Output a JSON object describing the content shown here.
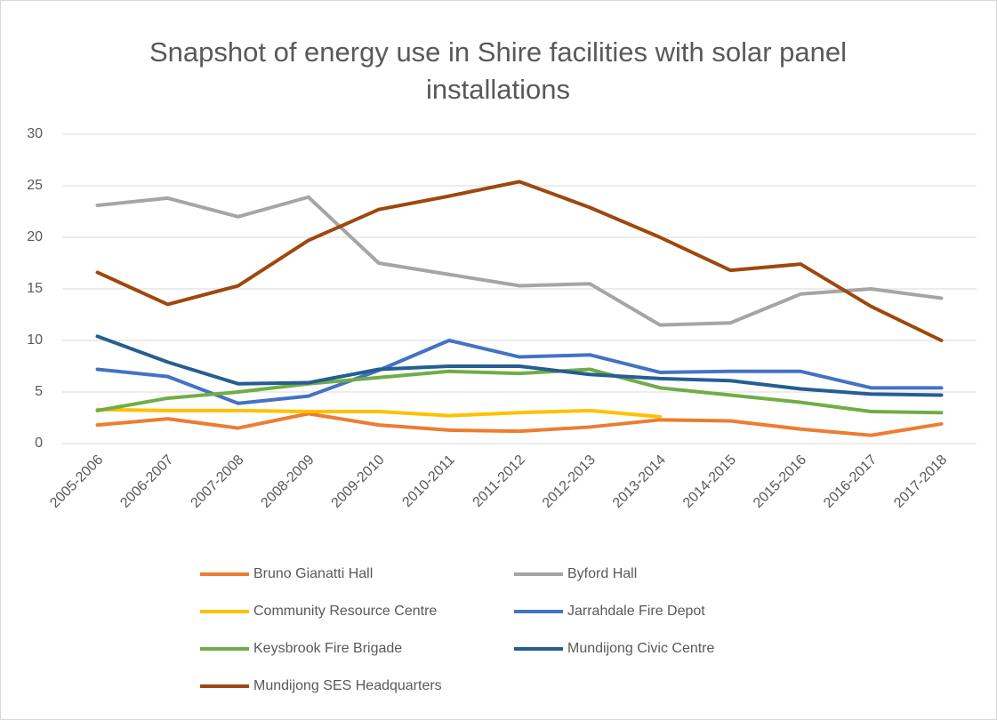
{
  "chart_data": {
    "type": "line",
    "title": "Snapshot of energy use in Shire facilities with solar panel installations",
    "categories": [
      "2005-2006",
      "2006-2007",
      "2007-2008",
      "2008-2009",
      "2009-2010",
      "2010-2011",
      "2011-2012",
      "2012-2013",
      "2013-2014",
      "2014-2015",
      "2015-2016",
      "2016-2017",
      "2017-2018"
    ],
    "series": [
      {
        "name": "Bruno Gianatti Hall",
        "color": "#ed7d31",
        "values": [
          1.8,
          2.4,
          1.5,
          2.9,
          1.8,
          1.3,
          1.2,
          1.6,
          2.3,
          2.2,
          1.4,
          0.8,
          1.9
        ]
      },
      {
        "name": "Byford Hall",
        "color": "#a5a5a5",
        "values": [
          23.1,
          23.8,
          22.0,
          23.9,
          17.5,
          16.4,
          15.3,
          15.5,
          11.5,
          11.7,
          14.5,
          15.0,
          14.1
        ]
      },
      {
        "name": "Community Resource Centre",
        "color": "#ffc000",
        "values": [
          3.3,
          3.2,
          3.2,
          3.1,
          3.1,
          2.7,
          3.0,
          3.2,
          2.6,
          null,
          null,
          null,
          null
        ]
      },
      {
        "name": "Jarrahdale Fire Depot",
        "color": "#4472c4",
        "values": [
          7.2,
          6.5,
          3.9,
          4.6,
          7.1,
          10.0,
          8.4,
          8.6,
          6.9,
          7.0,
          7.0,
          5.4,
          5.4
        ]
      },
      {
        "name": "Keysbrook Fire Brigade",
        "color": "#70ad47",
        "values": [
          3.2,
          4.4,
          5.0,
          5.8,
          6.4,
          7.0,
          6.8,
          7.2,
          5.4,
          4.7,
          4.0,
          3.1,
          3.0
        ]
      },
      {
        "name": "Mundijong Civic Centre",
        "color": "#255e91",
        "values": [
          10.4,
          7.9,
          5.8,
          5.9,
          7.2,
          7.5,
          7.5,
          6.7,
          6.3,
          6.1,
          5.3,
          4.8,
          4.7
        ]
      },
      {
        "name": "Mundijong SES Headquarters",
        "color": "#9e480e",
        "values": [
          16.6,
          13.5,
          15.3,
          19.7,
          22.7,
          24.0,
          25.4,
          22.9,
          20.0,
          16.8,
          17.4,
          13.3,
          10.0
        ]
      }
    ],
    "ylim": [
      0,
      30
    ],
    "yticks": [
      0,
      5,
      10,
      15,
      20,
      25,
      30
    ],
    "grid": true
  }
}
